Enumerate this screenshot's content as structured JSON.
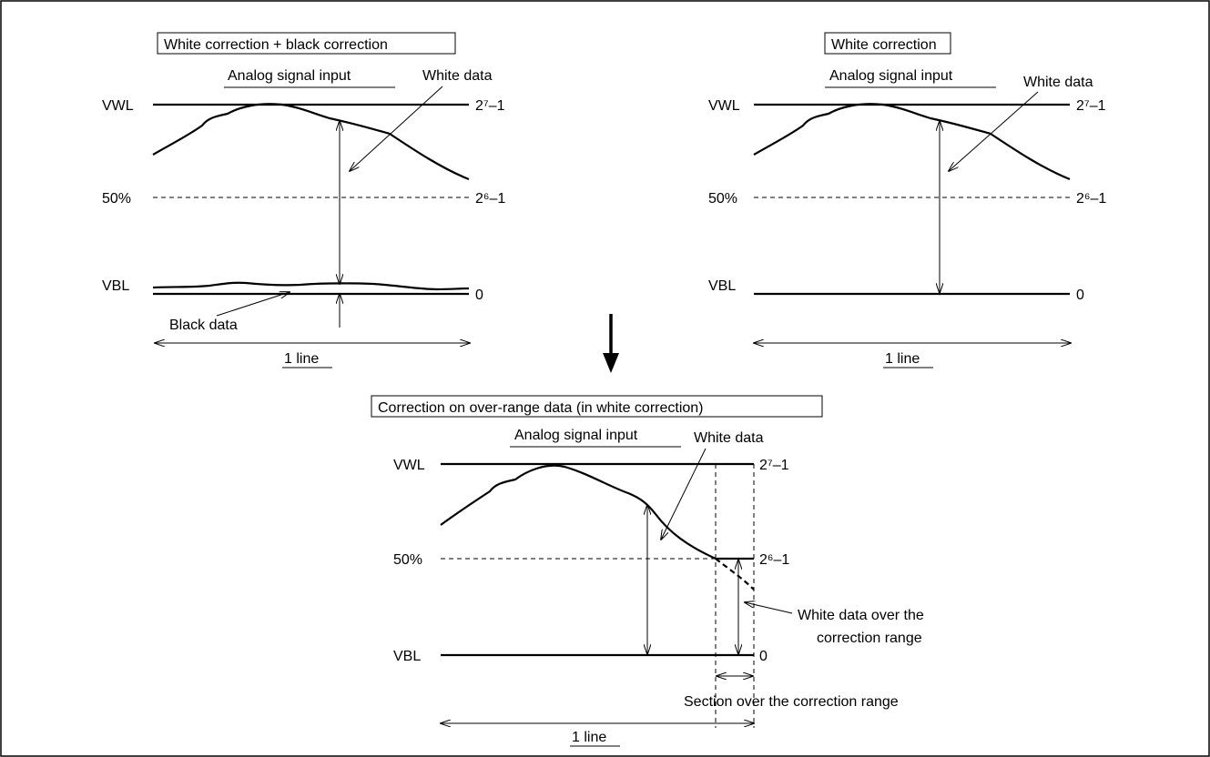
{
  "panels": {
    "top_left": {
      "title": "White correction + black correction",
      "analog_label": "Analog signal input",
      "white_data": "White data",
      "black_data": "Black data",
      "vwl": "VWL",
      "vbl": "VBL",
      "pct50": "50%",
      "level_top": "2⁷–1",
      "level_mid": "2⁶–1",
      "level_zero": "0",
      "line_label": "1 line"
    },
    "top_right": {
      "title": "White correction",
      "analog_label": "Analog signal input",
      "white_data": "White data",
      "vwl": "VWL",
      "vbl": "VBL",
      "pct50": "50%",
      "level_top": "2⁷–1",
      "level_mid": "2⁶–1",
      "level_zero": "0",
      "line_label": "1 line"
    },
    "bottom": {
      "title": "Correction on over-range data (in white correction)",
      "analog_label": "Analog signal input",
      "white_data": "White data",
      "vwl": "VWL",
      "vbl": "VBL",
      "pct50": "50%",
      "level_top": "2⁷–1",
      "level_mid": "2⁶–1",
      "level_zero": "0",
      "over_range_line1": "White data over the",
      "over_range_line2": "correction range",
      "section_label": "Section over the correction range",
      "line_label": "1 line"
    }
  }
}
